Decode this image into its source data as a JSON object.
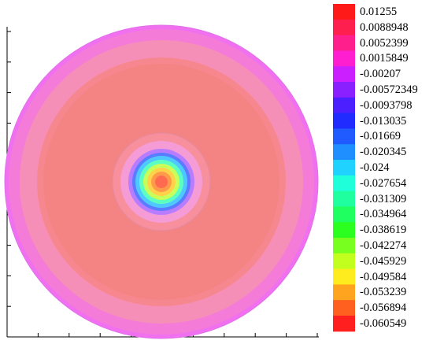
{
  "chart_data": {
    "type": "contour",
    "legend_placement": "right",
    "legend": {
      "levels": [
        {
          "label": "0.01255",
          "color": "#ff1a1a"
        },
        {
          "label": "0.0088948",
          "color": "#ff1f4f"
        },
        {
          "label": "0.0052399",
          "color": "#ff1f8c"
        },
        {
          "label": "0.0015849",
          "color": "#ff1fd0"
        },
        {
          "label": "-0.00207",
          "color": "#cc1fff"
        },
        {
          "label": "-0.00572349",
          "color": "#8a1fff"
        },
        {
          "label": "-0.0093798",
          "color": "#4b1fff"
        },
        {
          "label": "-0.013035",
          "color": "#1f2bff"
        },
        {
          "label": "-0.01669",
          "color": "#1f5bff"
        },
        {
          "label": "-0.020345",
          "color": "#1f8fff"
        },
        {
          "label": "-0.024",
          "color": "#1fd2ff"
        },
        {
          "label": "-0.027654",
          "color": "#1fffd9"
        },
        {
          "label": "-0.031309",
          "color": "#1fffa0"
        },
        {
          "label": "-0.034964",
          "color": "#1fff60"
        },
        {
          "label": "-0.038619",
          "color": "#2bff1f"
        },
        {
          "label": "-0.042274",
          "color": "#78ff1f"
        },
        {
          "label": "-0.045929",
          "color": "#c2ff1f"
        },
        {
          "label": "-0.049584",
          "color": "#ffec1f"
        },
        {
          "label": "-0.053239",
          "color": "#ffa41f"
        },
        {
          "label": "-0.056894",
          "color": "#ff5f1f"
        },
        {
          "label": "-0.060549",
          "color": "#ff1f1f"
        }
      ]
    },
    "field": {
      "rings": [
        {
          "fill": "#f070f0"
        },
        {
          "fill": "#f47cd8"
        },
        {
          "fill": "#f68fb8"
        },
        {
          "fill": "#f7878f"
        },
        {
          "fill": "#f48484"
        },
        {
          "fill": "#f78f9c"
        },
        {
          "fill": "#f59cd6"
        },
        {
          "fill": "#b77cff"
        },
        {
          "fill": "#5a7cff"
        },
        {
          "fill": "#4fc8ff"
        },
        {
          "fill": "#5cffc0"
        },
        {
          "fill": "#c8ff5a"
        },
        {
          "fill": "#ffd24a"
        },
        {
          "fill": "#ff9a4a"
        },
        {
          "fill": "#ff6a50"
        }
      ]
    }
  }
}
